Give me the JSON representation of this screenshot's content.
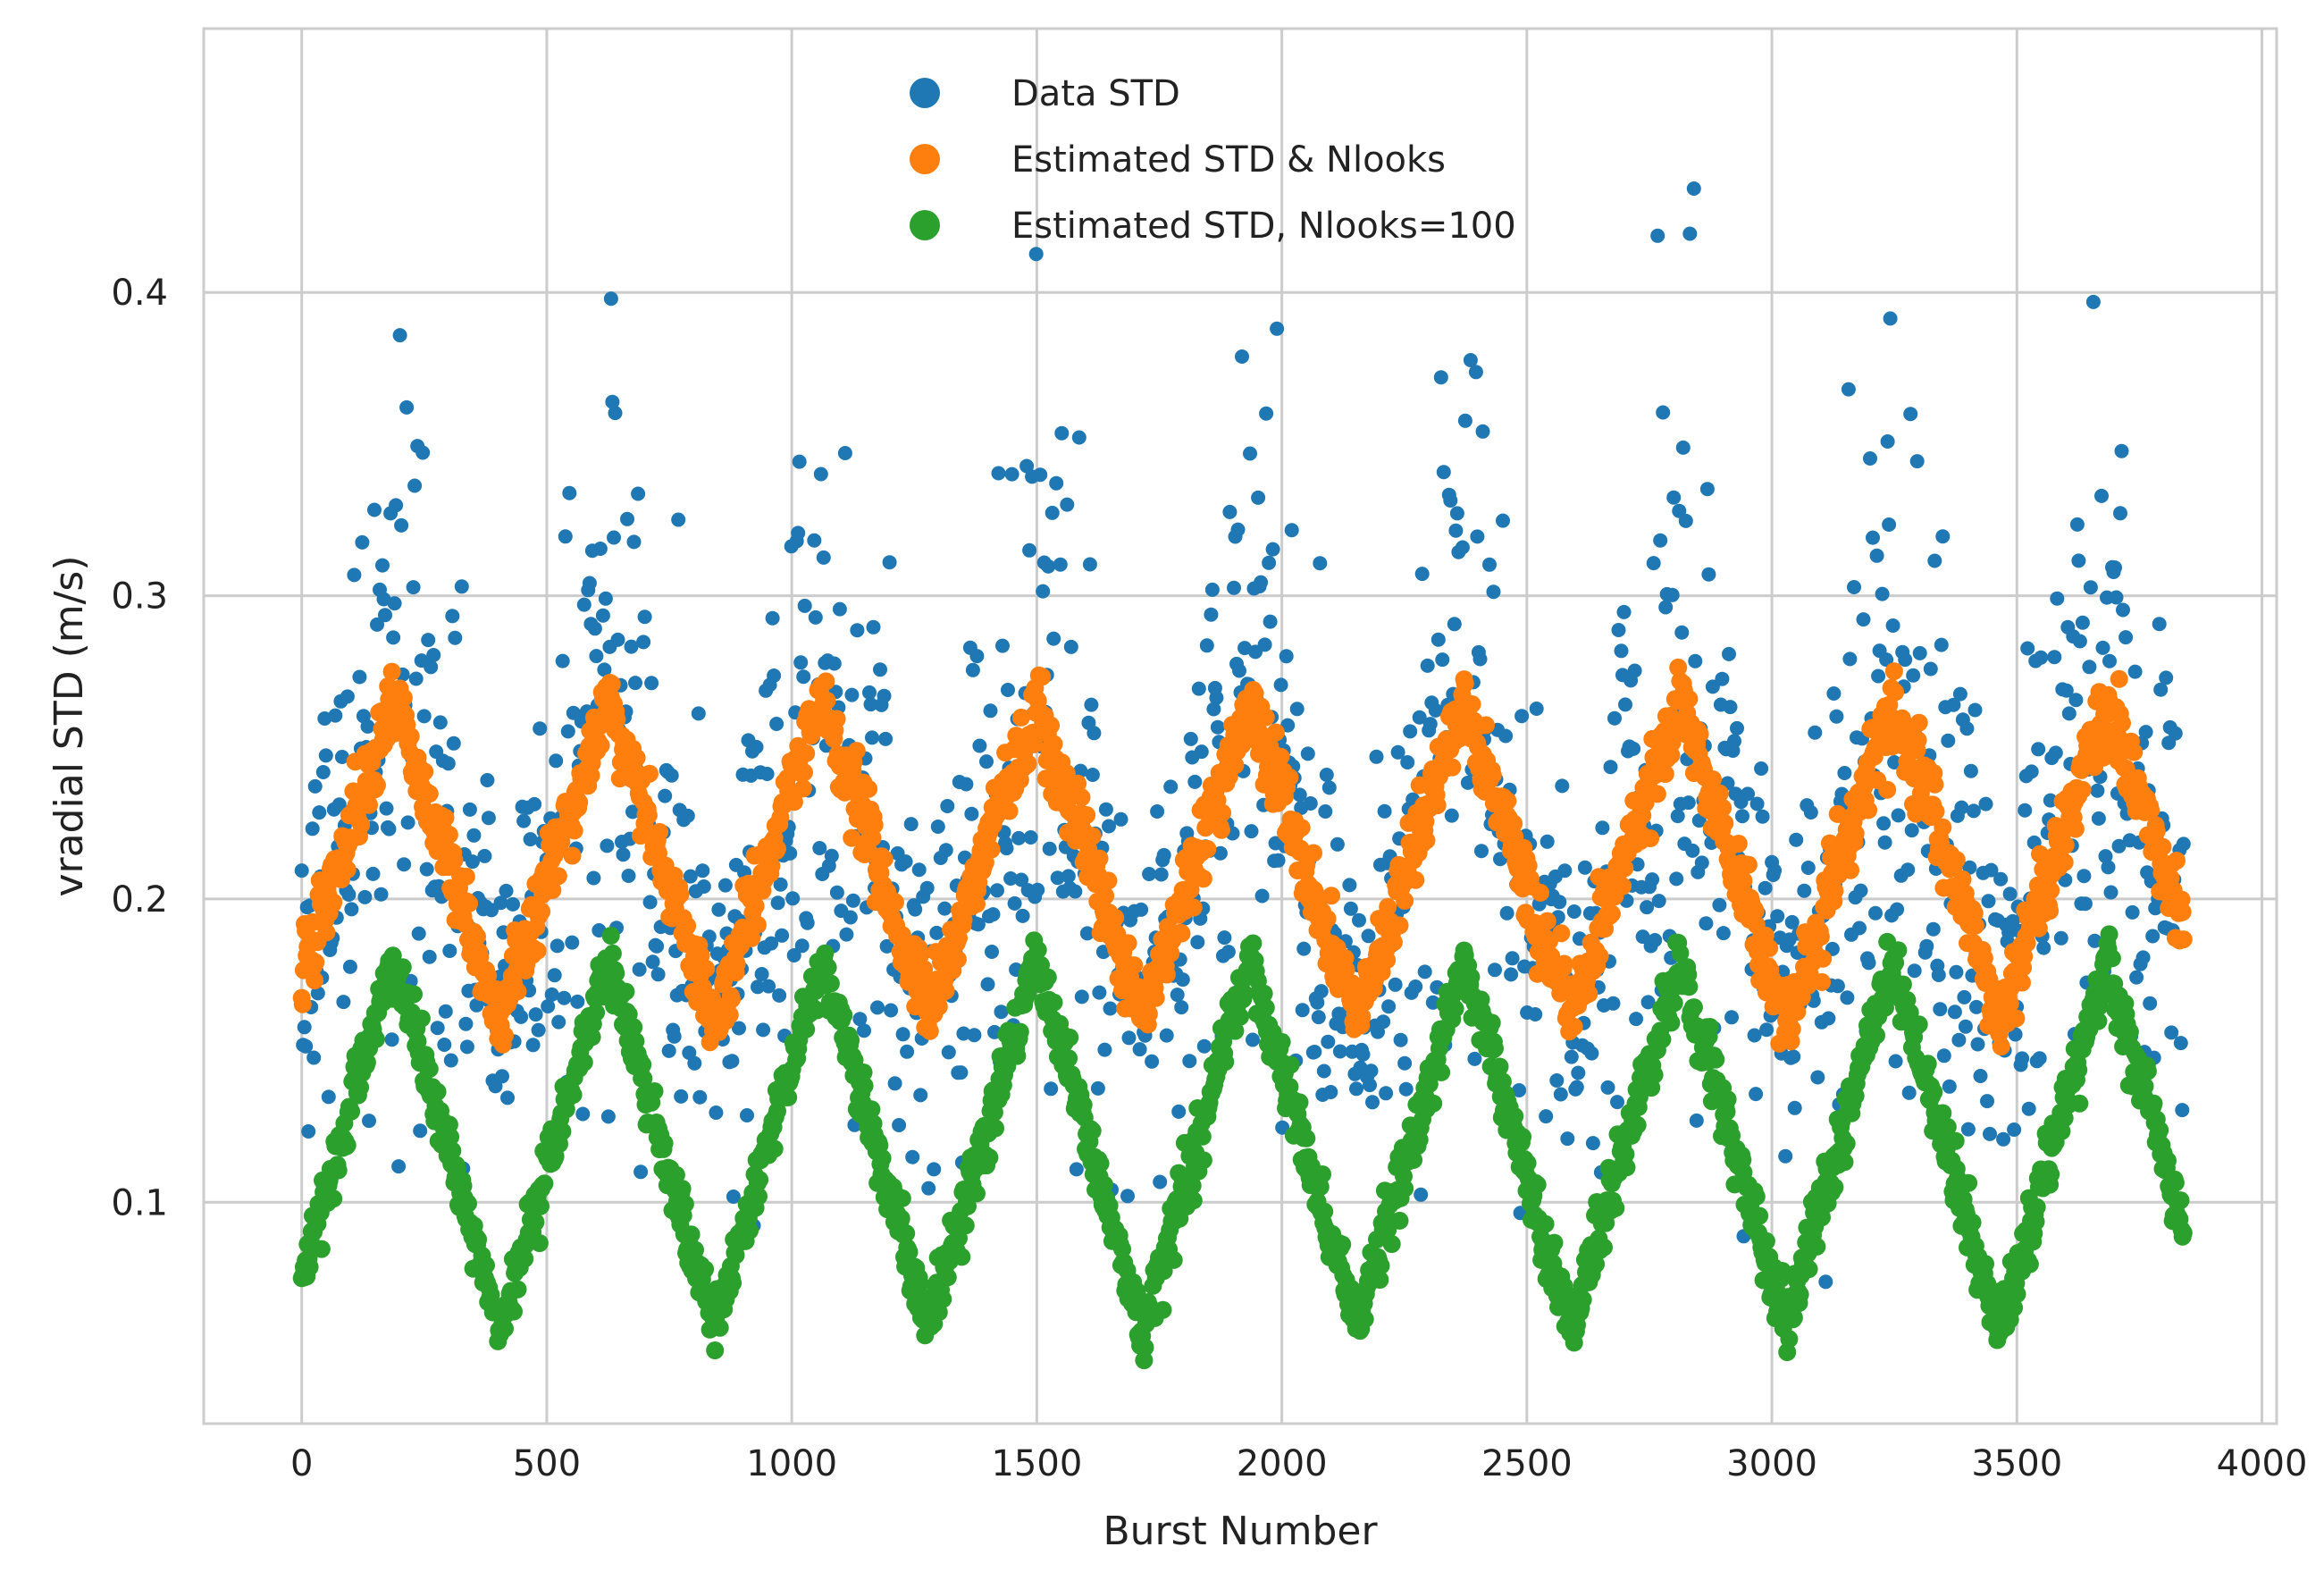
{
  "chart_data": {
    "type": "scatter",
    "title": "",
    "xlabel": "Burst Number",
    "ylabel": "vradial STD (m/s)",
    "xlim": [
      -200,
      4030
    ],
    "ylim": [
      0.027,
      0.487
    ],
    "xticks": [
      0,
      500,
      1000,
      1500,
      2000,
      2500,
      3000,
      3500,
      4000
    ],
    "xtick_labels": [
      "0",
      "500",
      "1000",
      "1500",
      "2000",
      "2500",
      "3000",
      "3500",
      "4000"
    ],
    "yticks": [
      0.1,
      0.2,
      0.3,
      0.4
    ],
    "ytick_labels": [
      "0.1",
      "0.2",
      "0.3",
      "0.4"
    ],
    "grid": true,
    "legend_position": "top-center",
    "x_range": [
      0,
      3840
    ],
    "period_bursts": 437,
    "series": [
      {
        "name": "Data STD",
        "color": "#1f77b4",
        "label": "Data STD",
        "mean_model": {
          "base": 0.166,
          "amplitude": 0.104,
          "phase_bursts": 187
        },
        "scatter_spread": 0.045,
        "count": 1400
      },
      {
        "name": "Estimated STD & Nlooks",
        "color": "#ff7f0e",
        "label": "Estimated STD & Nlooks",
        "mean_model": {
          "base": 0.16,
          "amplitude": 0.106,
          "phase_bursts": 187
        },
        "scatter_spread": 0.006,
        "count": 1900
      },
      {
        "name": "Estimated STD, Nlooks=100",
        "color": "#2ca02c",
        "label": "Estimated STD, Nlooks=100",
        "mean_model": {
          "base": 0.058,
          "amplitude": 0.122,
          "phase_bursts": 187
        },
        "scatter_spread": 0.005,
        "count": 1900
      }
    ]
  }
}
